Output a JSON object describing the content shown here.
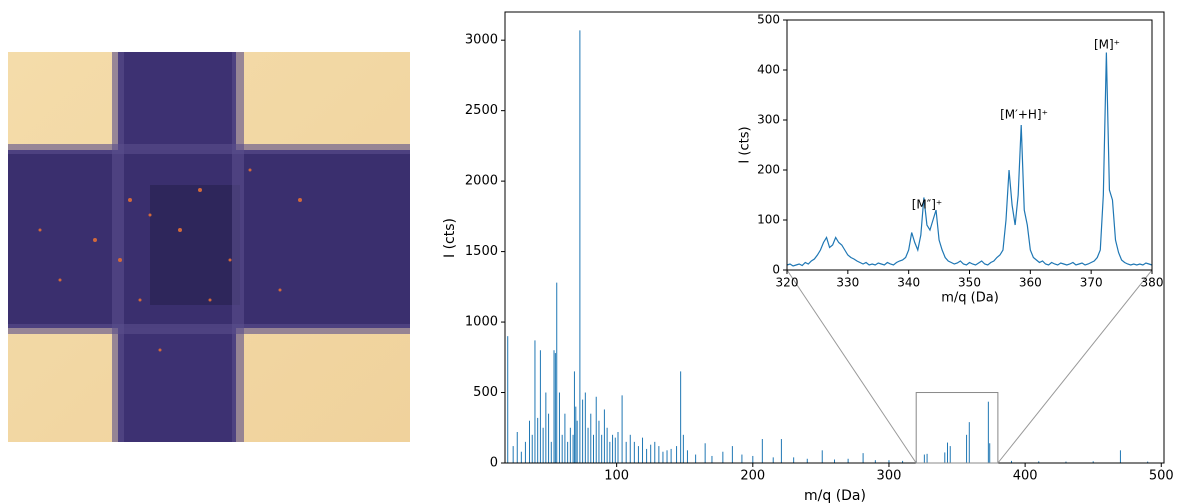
{
  "chart_data": [
    {
      "type": "spectrum",
      "xlabel": "m/q (Da)",
      "ylabel": "I (cts)",
      "color": "#1f77b4",
      "xlim": [
        18,
        502
      ],
      "ylim": [
        0,
        3200
      ],
      "xticks": [
        100,
        200,
        300,
        400,
        500
      ],
      "yticks": [
        0,
        500,
        1000,
        1500,
        2000,
        2500,
        3000
      ],
      "x": [
        20,
        24,
        27,
        30,
        33,
        36,
        38,
        40,
        42,
        44,
        46,
        48,
        50,
        52,
        54,
        55,
        56,
        58,
        60,
        62,
        64,
        66,
        68,
        69,
        70,
        71,
        73,
        75,
        77,
        79,
        81,
        83,
        85,
        87,
        89,
        91,
        93,
        95,
        97,
        99,
        101,
        104,
        107,
        110,
        113,
        116,
        119,
        122,
        125,
        128,
        131,
        134,
        137,
        140,
        144,
        147,
        149,
        152,
        158,
        165,
        170,
        178,
        185,
        192,
        200,
        207,
        215,
        221,
        230,
        240,
        251,
        260,
        270,
        281,
        290,
        300,
        310,
        320,
        326,
        328,
        341,
        343,
        345,
        357,
        359,
        373,
        374,
        390,
        410,
        430,
        450,
        470,
        490
      ],
      "values": [
        900,
        120,
        220,
        80,
        150,
        300,
        200,
        870,
        320,
        800,
        250,
        500,
        350,
        150,
        800,
        780,
        1280,
        500,
        200,
        350,
        150,
        250,
        200,
        650,
        400,
        300,
        3070,
        450,
        500,
        250,
        350,
        200,
        470,
        300,
        200,
        380,
        250,
        150,
        200,
        180,
        220,
        480,
        150,
        200,
        150,
        120,
        180,
        100,
        130,
        150,
        120,
        80,
        90,
        100,
        120,
        650,
        200,
        90,
        60,
        140,
        50,
        80,
        120,
        60,
        50,
        170,
        40,
        170,
        40,
        30,
        90,
        25,
        30,
        70,
        20,
        20,
        15,
        12,
        60,
        65,
        75,
        145,
        120,
        200,
        290,
        435,
        140,
        15,
        12,
        10,
        12,
        90,
        10
      ]
    },
    {
      "type": "line",
      "xlabel": "m/q (Da)",
      "ylabel": "I (cts)",
      "color": "#1f77b4",
      "xlim": [
        320,
        380
      ],
      "ylim": [
        0,
        500
      ],
      "xticks": [
        320,
        330,
        340,
        350,
        360,
        370,
        380
      ],
      "yticks": [
        0,
        100,
        200,
        300,
        400,
        500
      ],
      "annotations": [
        "[M″]⁺",
        "[M′+H]⁺",
        "[M]⁺"
      ],
      "x": [
        320,
        320.5,
        321,
        321.5,
        322,
        322.5,
        323,
        323.5,
        324,
        324.5,
        325,
        325.5,
        326,
        326.5,
        327,
        327.5,
        328,
        328.5,
        329,
        329.5,
        330,
        330.5,
        331,
        331.5,
        332,
        332.5,
        333,
        333.5,
        334,
        334.5,
        335,
        335.5,
        336,
        336.5,
        337,
        337.5,
        338,
        338.5,
        339,
        339.5,
        340,
        340.5,
        341,
        341.5,
        342,
        342.5,
        343,
        343.5,
        344,
        344.5,
        345,
        345.5,
        346,
        346.5,
        347,
        347.5,
        348,
        348.5,
        349,
        349.5,
        350,
        350.5,
        351,
        351.5,
        352,
        352.5,
        353,
        353.5,
        354,
        354.5,
        355,
        355.5,
        356,
        356.5,
        357,
        357.5,
        358,
        358.5,
        359,
        359.5,
        360,
        360.5,
        361,
        361.5,
        362,
        362.5,
        363,
        363.5,
        364,
        364.5,
        365,
        365.5,
        366,
        366.5,
        367,
        367.5,
        368,
        368.5,
        369,
        369.5,
        370,
        370.5,
        371,
        371.5,
        372,
        372.5,
        373,
        373.5,
        374,
        374.5,
        375,
        375.5,
        376,
        376.5,
        377,
        377.5,
        378,
        378.5,
        379,
        379.5,
        380
      ],
      "values": [
        10,
        12,
        8,
        10,
        12,
        9,
        15,
        12,
        18,
        22,
        30,
        40,
        55,
        65,
        45,
        50,
        65,
        55,
        50,
        40,
        30,
        25,
        22,
        18,
        15,
        12,
        15,
        10,
        12,
        10,
        14,
        12,
        10,
        15,
        12,
        10,
        15,
        18,
        20,
        25,
        40,
        75,
        55,
        40,
        70,
        145,
        90,
        80,
        100,
        120,
        60,
        40,
        25,
        18,
        15,
        12,
        14,
        18,
        12,
        10,
        15,
        12,
        10,
        14,
        18,
        12,
        10,
        15,
        18,
        25,
        30,
        40,
        100,
        200,
        130,
        90,
        150,
        290,
        120,
        90,
        40,
        25,
        20,
        15,
        18,
        12,
        10,
        15,
        12,
        10,
        14,
        12,
        10,
        12,
        15,
        10,
        12,
        14,
        10,
        12,
        15,
        18,
        25,
        40,
        150,
        435,
        160,
        140,
        60,
        35,
        20,
        15,
        12,
        10,
        12,
        10,
        12,
        10,
        14,
        12,
        10
      ]
    }
  ]
}
